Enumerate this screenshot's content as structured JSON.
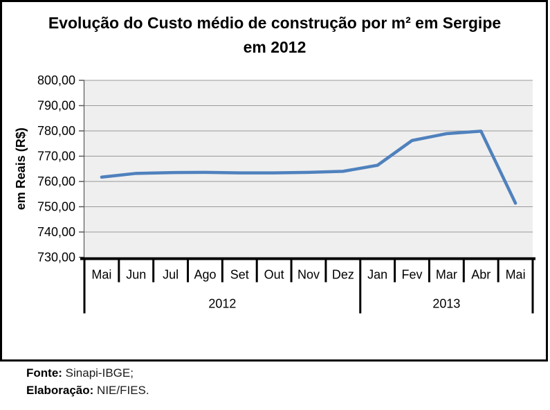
{
  "chart_data": {
    "type": "line",
    "title": "Evolução do Custo médio de construção por m² em Sergipe em 2012",
    "ylabel": "em Reais (R$)",
    "ylim": [
      730,
      800
    ],
    "ytick_step": 10,
    "ytick_labels": [
      "800,00",
      "790,00",
      "780,00",
      "770,00",
      "760,00",
      "750,00",
      "740,00",
      "730,00"
    ],
    "categories": [
      "Mai",
      "Jun",
      "Jul",
      "Ago",
      "Set",
      "Out",
      "Nov",
      "Dez",
      "Jan",
      "Fev",
      "Mar",
      "Abr",
      "Mai"
    ],
    "year_groups": [
      {
        "label": "2012",
        "span": 8
      },
      {
        "label": "2013",
        "span": 5
      }
    ],
    "series": [
      {
        "color": "#4F81BD",
        "values": [
          761.7,
          763.2,
          763.5,
          763.6,
          763.4,
          763.4,
          763.6,
          764.0,
          766.4,
          776.2,
          778.9,
          779.9,
          751.4
        ]
      }
    ],
    "grid": true,
    "legend": "none",
    "plot_bg": "#EFEFEF",
    "grid_color": "#999999",
    "axis_color": "#595959"
  },
  "footer": {
    "source_label": "Fonte:",
    "source_value": "Sinapi-IBGE;",
    "elaboration_label": "Elaboração:",
    "elaboration_value": "NIE/FIES."
  }
}
